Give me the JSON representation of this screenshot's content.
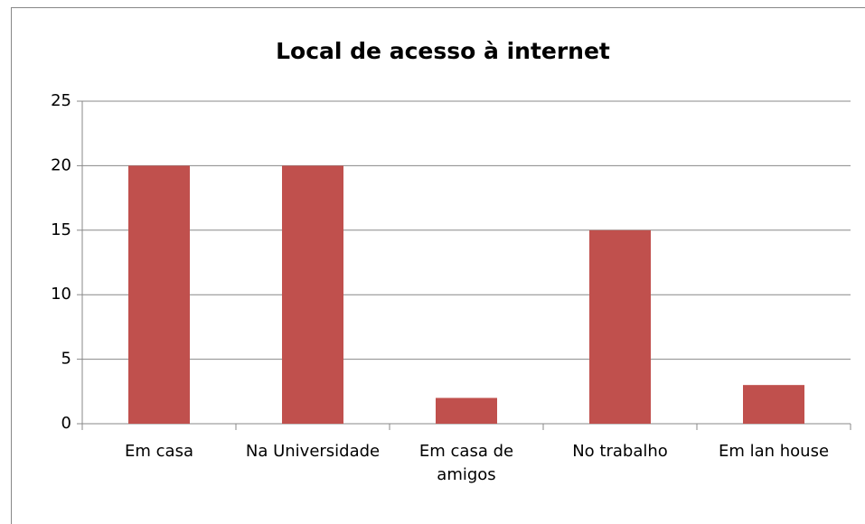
{
  "chart_data": {
    "type": "bar",
    "title": "Local de acesso à internet",
    "categories": [
      "Em casa",
      "Na Universidade",
      "Em casa de amigos",
      "No trabalho",
      "Em lan house"
    ],
    "values": [
      20,
      20,
      2,
      15,
      3
    ],
    "color": "#c0504d",
    "ylim": [
      0,
      25
    ],
    "yticks": [
      0,
      5,
      10,
      15,
      20,
      25
    ],
    "grid": true
  }
}
